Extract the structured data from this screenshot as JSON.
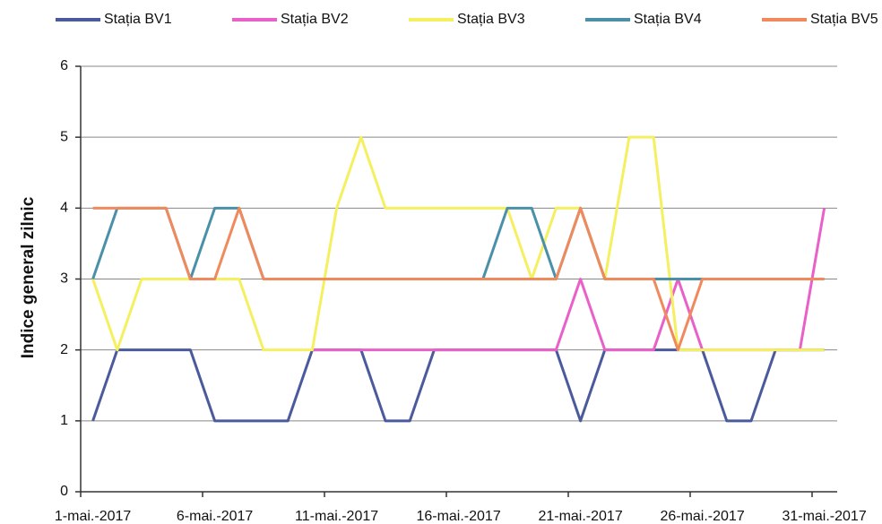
{
  "chart_data": {
    "type": "line",
    "y_label": "Indice general zilnic",
    "categories": [
      "1-mai.-2017",
      null,
      null,
      null,
      null,
      "6-mai.-2017",
      null,
      null,
      null,
      null,
      "11-mai.-2017",
      null,
      null,
      null,
      null,
      "16-mai.-2017",
      null,
      null,
      null,
      null,
      "21-mai.-2017",
      null,
      null,
      null,
      null,
      "26-mai.-2017",
      null,
      null,
      null,
      null,
      "31-mai.-2017"
    ],
    "series": [
      {
        "name": "Stația BV1",
        "color": "#4a5a9c",
        "values": [
          1,
          2,
          2,
          2,
          2,
          1,
          1,
          1,
          1,
          2,
          2,
          2,
          1,
          1,
          2,
          2,
          2,
          2,
          2,
          2,
          1,
          2,
          2,
          2,
          2,
          2,
          1,
          1,
          2,
          2,
          2
        ]
      },
      {
        "name": "Stația BV2",
        "color": "#e860c8",
        "values": [
          null,
          null,
          null,
          null,
          null,
          null,
          null,
          null,
          null,
          2,
          2,
          2,
          2,
          2,
          2,
          2,
          2,
          2,
          2,
          2,
          3,
          2,
          2,
          2,
          3,
          2,
          2,
          2,
          2,
          2,
          4
        ]
      },
      {
        "name": "Stația BV3",
        "color": "#f4f060",
        "values": [
          3,
          2,
          3,
          3,
          3,
          3,
          3,
          2,
          2,
          2,
          4,
          5,
          4,
          4,
          4,
          4,
          4,
          4,
          3,
          4,
          4,
          3,
          5,
          5,
          2,
          2,
          2,
          2,
          2,
          2,
          2
        ]
      },
      {
        "name": "Stația BV4",
        "color": "#4a90a8",
        "values": [
          3,
          4,
          4,
          4,
          3,
          4,
          4,
          3,
          3,
          3,
          3,
          3,
          3,
          3,
          3,
          3,
          3,
          4,
          4,
          3,
          4,
          3,
          3,
          3,
          3,
          3,
          3,
          3,
          3,
          3,
          3
        ]
      },
      {
        "name": "Stația BV5",
        "color": "#f08a5c",
        "values": [
          4,
          4,
          4,
          4,
          3,
          3,
          4,
          3,
          3,
          3,
          3,
          3,
          3,
          3,
          3,
          3,
          3,
          3,
          3,
          3,
          4,
          3,
          3,
          3,
          2,
          3,
          3,
          3,
          3,
          3,
          3
        ]
      }
    ],
    "ylim": [
      0,
      6
    ],
    "yticks": [
      0,
      1,
      2,
      3,
      4,
      5,
      6
    ],
    "grid": true,
    "legend": "top"
  }
}
